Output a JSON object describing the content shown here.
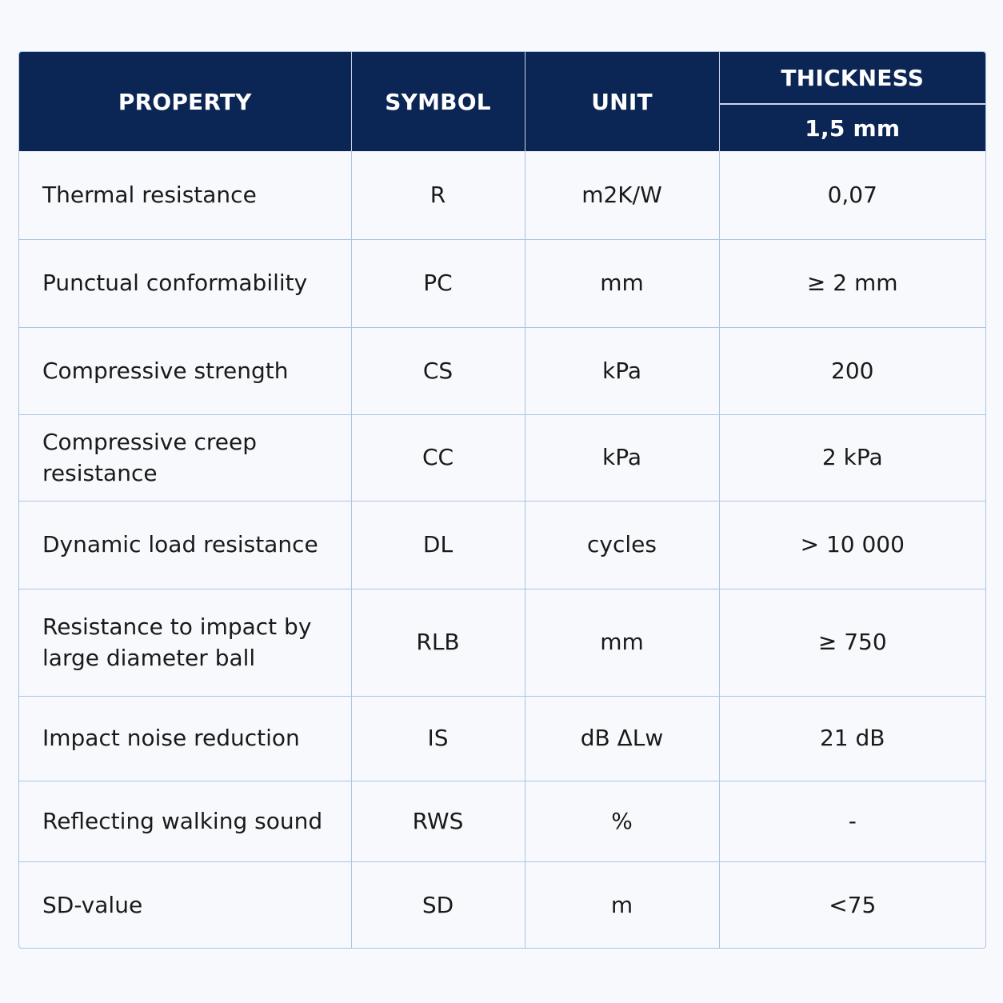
{
  "header": {
    "property": "PROPERTY",
    "symbol": "SYMBOL",
    "unit": "UNIT",
    "thickness": "THICKNESS",
    "thickness_value": "1,5 mm"
  },
  "rows": [
    {
      "property": "Thermal resistance",
      "symbol": "R",
      "unit": "m2K/W",
      "value": "0,07"
    },
    {
      "property": "Punctual conformability",
      "symbol": "PC",
      "unit": "mm",
      "value": "≥ 2 mm"
    },
    {
      "property": "Compressive strength",
      "symbol": "CS",
      "unit": "kPa",
      "value": "200"
    },
    {
      "property": "Compressive creep resistance",
      "symbol": "CC",
      "unit": "kPa",
      "value": "2 kPa"
    },
    {
      "property": "Dynamic load resistance",
      "symbol": "DL",
      "unit": "cycles",
      "value": "> 10 000"
    },
    {
      "property": "Resistance to impact by large diameter ball",
      "symbol": "RLB",
      "unit": "mm",
      "value": "≥ 750"
    },
    {
      "property": "Impact noise reduction",
      "symbol": "IS",
      "unit": "dB ΔLw",
      "value": "21 dB"
    },
    {
      "property": "Reflecting walking sound",
      "symbol": "RWS",
      "unit": "%",
      "value": "-"
    },
    {
      "property": "SD-value",
      "symbol": "SD",
      "unit": "m",
      "value": "<75"
    }
  ]
}
